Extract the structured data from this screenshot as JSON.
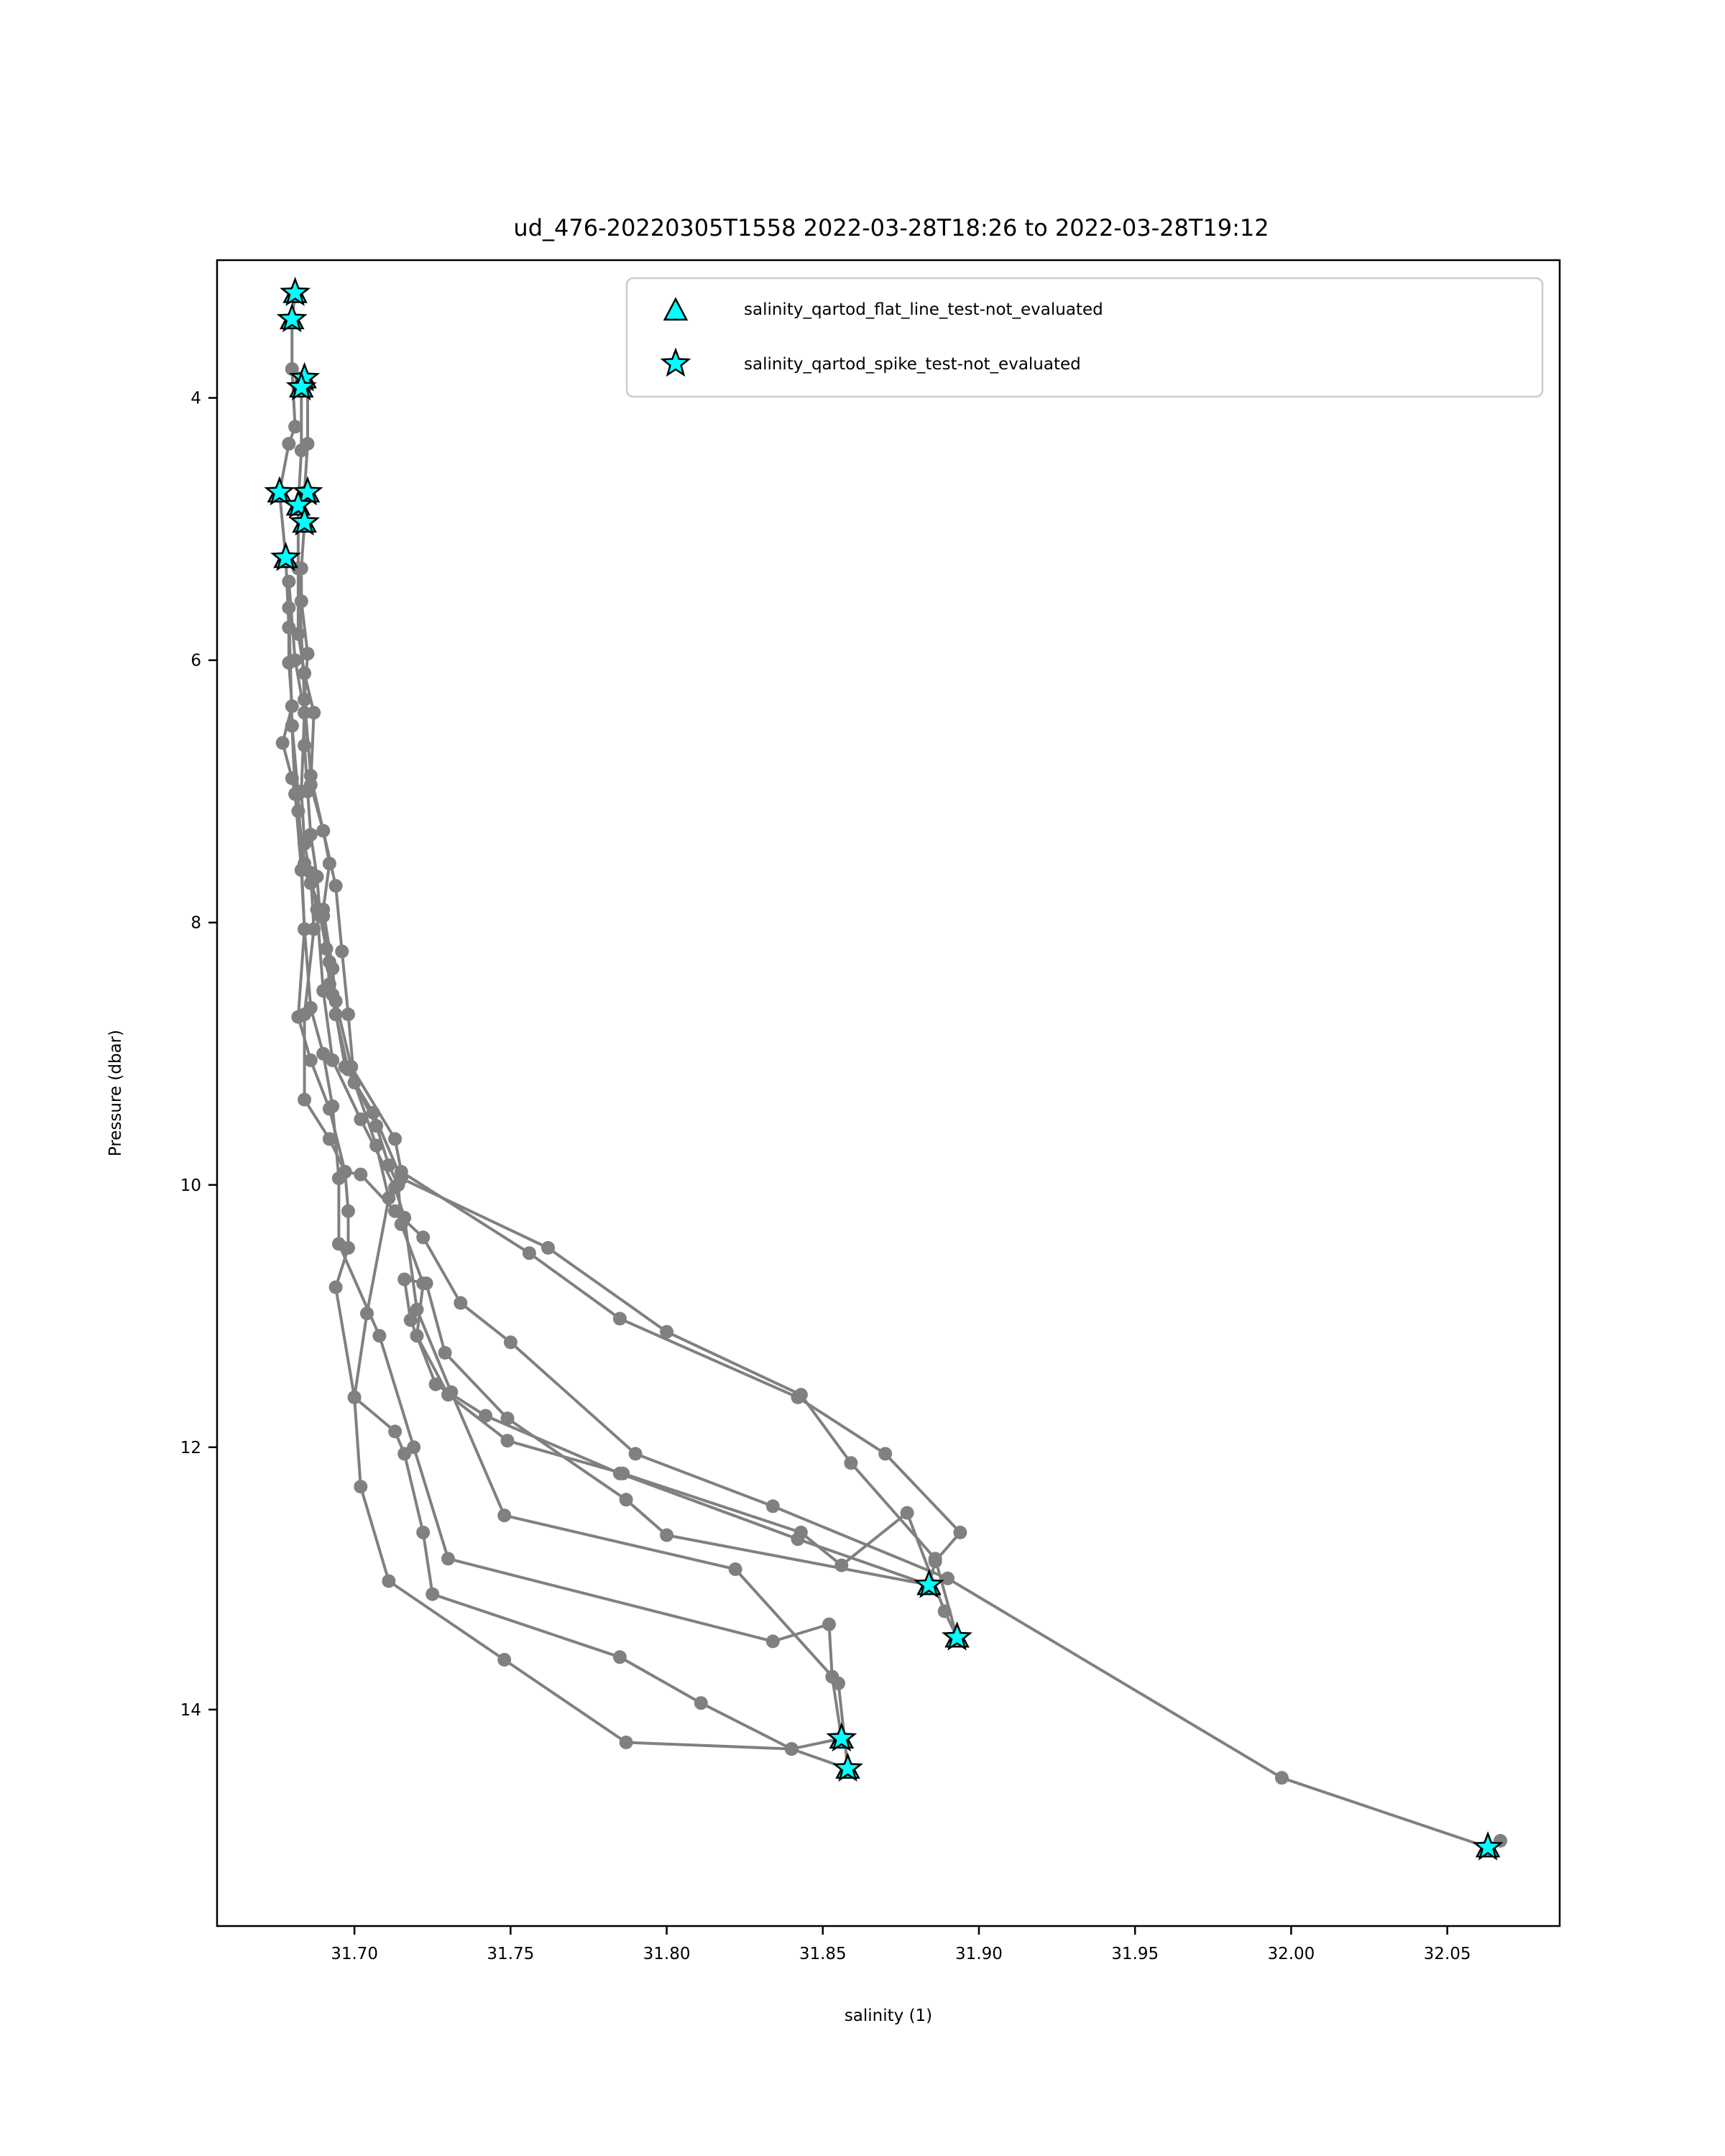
{
  "chart_data": {
    "type": "line",
    "title": "ud_476-20220305T1558 2022-03-28T18:26 to 2022-03-28T19:12",
    "xlabel": "salinity (1)",
    "ylabel": "Pressure (dbar)",
    "xlim": [
      31.656,
      32.086
    ],
    "ylim": [
      15.65,
      2.95
    ],
    "y_inverted": true,
    "xticks": [
      31.7,
      31.75,
      31.8,
      31.85,
      31.9,
      31.95,
      32.0,
      32.05
    ],
    "xtick_labels": [
      "31.70",
      "31.75",
      "31.80",
      "31.85",
      "31.90",
      "31.95",
      "32.00",
      "32.05"
    ],
    "yticks": [
      4,
      6,
      8,
      10,
      12,
      14
    ],
    "ytick_labels": [
      "4",
      "6",
      "8",
      "10",
      "12",
      "14"
    ],
    "grid": false,
    "legend_position": "top-right",
    "colors": {
      "profile_line": "#808080",
      "marker_fill": "#00ffff",
      "marker_edge": "#000000"
    },
    "series": [
      {
        "color": "#808080",
        "points": [
          [
            31.681,
            3.2
          ],
          [
            31.68,
            3.4
          ],
          [
            31.68,
            3.78
          ],
          [
            31.681,
            4.22
          ],
          [
            31.679,
            4.35
          ],
          [
            31.676,
            4.72
          ],
          [
            31.678,
            5.22
          ],
          [
            31.679,
            5.75
          ],
          [
            31.679,
            6.02
          ],
          [
            31.68,
            6.35
          ],
          [
            31.677,
            6.63
          ],
          [
            31.68,
            6.9
          ],
          [
            31.682,
            7.15
          ],
          [
            31.684,
            7.55
          ],
          [
            31.686,
            7.7
          ],
          [
            31.69,
            7.95
          ],
          [
            31.692,
            8.3
          ],
          [
            31.693,
            8.55
          ],
          [
            31.697,
            9.1
          ],
          [
            31.706,
            9.45
          ],
          [
            31.715,
            9.95
          ],
          [
            31.762,
            10.48
          ],
          [
            31.8,
            11.12
          ],
          [
            31.843,
            11.6
          ],
          [
            31.859,
            12.12
          ],
          [
            31.886,
            12.85
          ],
          [
            31.893,
            13.45
          ],
          [
            31.889,
            13.25
          ],
          [
            31.877,
            12.5
          ],
          [
            31.856,
            12.9
          ],
          [
            31.843,
            12.65
          ],
          [
            31.786,
            12.2
          ],
          [
            31.749,
            11.95
          ],
          [
            31.73,
            11.6
          ],
          [
            31.72,
            11.15
          ],
          [
            31.722,
            10.75
          ],
          [
            31.715,
            10.3
          ],
          [
            31.714,
            10.0
          ],
          [
            31.711,
            9.85
          ],
          [
            31.707,
            9.55
          ],
          [
            31.698,
            9.12
          ],
          [
            31.694,
            8.7
          ],
          [
            31.692,
            8.47
          ],
          [
            31.691,
            8.2
          ],
          [
            31.689,
            7.95
          ],
          [
            31.688,
            7.65
          ],
          [
            31.686,
            7.33
          ],
          [
            31.685,
            7.0
          ],
          [
            31.684,
            6.65
          ],
          [
            31.684,
            6.3
          ],
          [
            31.685,
            5.95
          ],
          [
            31.683,
            5.55
          ],
          [
            31.683,
            5.3
          ],
          [
            31.684,
            4.95
          ],
          [
            31.684,
            4.72
          ],
          [
            31.685,
            4.35
          ],
          [
            31.685,
            3.9
          ],
          [
            31.683,
            3.85
          ]
        ]
      },
      {
        "color": "#808080",
        "points": [
          [
            31.683,
            3.88
          ],
          [
            31.683,
            4.4
          ],
          [
            31.682,
            4.82
          ],
          [
            31.682,
            5.3
          ],
          [
            31.682,
            5.8
          ],
          [
            31.684,
            6.1
          ],
          [
            31.687,
            6.4
          ],
          [
            31.686,
            6.95
          ],
          [
            31.69,
            7.3
          ],
          [
            31.692,
            7.55
          ],
          [
            31.69,
            7.9
          ],
          [
            31.693,
            8.35
          ],
          [
            31.694,
            8.6
          ],
          [
            31.699,
            9.1
          ],
          [
            31.713,
            9.65
          ],
          [
            31.715,
            9.9
          ],
          [
            31.756,
            10.52
          ],
          [
            31.785,
            11.02
          ],
          [
            31.842,
            11.62
          ],
          [
            31.87,
            12.05
          ],
          [
            31.894,
            12.65
          ],
          [
            31.886,
            12.87
          ],
          [
            31.884,
            13.05
          ],
          [
            31.8,
            12.67
          ],
          [
            31.787,
            12.4
          ],
          [
            31.749,
            11.78
          ],
          [
            31.729,
            11.28
          ],
          [
            31.723,
            10.75
          ],
          [
            31.716,
            10.72
          ],
          [
            31.718,
            11.03
          ],
          [
            31.726,
            11.52
          ],
          [
            31.742,
            11.76
          ],
          [
            31.785,
            12.2
          ],
          [
            31.842,
            12.7
          ],
          [
            31.884,
            13.05
          ]
        ]
      },
      {
        "color": "#808080",
        "points": [
          [
            31.679,
            5.4
          ],
          [
            31.681,
            6.0
          ],
          [
            31.684,
            6.4
          ],
          [
            31.683,
            7.0
          ],
          [
            31.684,
            7.4
          ],
          [
            31.688,
            7.9
          ],
          [
            31.69,
            8.52
          ],
          [
            31.693,
            9.05
          ],
          [
            31.702,
            9.5
          ],
          [
            31.713,
            10.02
          ],
          [
            31.716,
            10.25
          ],
          [
            31.72,
            10.95
          ],
          [
            31.731,
            11.58
          ],
          [
            31.748,
            12.52
          ],
          [
            31.822,
            12.93
          ],
          [
            31.855,
            13.8
          ],
          [
            31.858,
            14.45
          ],
          [
            31.84,
            14.3
          ],
          [
            31.787,
            14.25
          ],
          [
            31.748,
            13.62
          ],
          [
            31.711,
            13.02
          ],
          [
            31.702,
            12.3
          ],
          [
            31.7,
            11.62
          ],
          [
            31.704,
            10.98
          ],
          [
            31.711,
            10.1
          ],
          [
            31.707,
            9.7
          ],
          [
            31.7,
            9.22
          ],
          [
            31.698,
            8.7
          ],
          [
            31.696,
            8.22
          ],
          [
            31.694,
            7.72
          ],
          [
            31.69,
            7.3
          ],
          [
            31.686,
            6.88
          ],
          [
            31.684,
            6.3
          ],
          [
            31.682,
            5.3
          ]
        ]
      },
      {
        "color": "#808080",
        "points": [
          [
            31.679,
            5.6
          ],
          [
            31.68,
            6.5
          ],
          [
            31.682,
            7.02
          ],
          [
            31.684,
            8.05
          ],
          [
            31.682,
            8.72
          ],
          [
            31.686,
            9.05
          ],
          [
            31.692,
            9.42
          ],
          [
            31.697,
            9.9
          ],
          [
            31.698,
            10.2
          ],
          [
            31.698,
            10.48
          ],
          [
            31.694,
            10.78
          ],
          [
            31.7,
            11.62
          ],
          [
            31.713,
            11.88
          ],
          [
            31.716,
            12.05
          ],
          [
            31.722,
            12.65
          ],
          [
            31.725,
            13.12
          ],
          [
            31.785,
            13.6
          ],
          [
            31.811,
            13.95
          ],
          [
            31.84,
            14.3
          ],
          [
            31.856,
            14.22
          ],
          [
            31.853,
            13.75
          ],
          [
            31.852,
            13.35
          ],
          [
            31.834,
            13.48
          ],
          [
            31.73,
            12.85
          ],
          [
            31.719,
            12.0
          ],
          [
            31.708,
            11.15
          ],
          [
            31.695,
            10.45
          ],
          [
            31.695,
            9.95
          ],
          [
            31.693,
            9.4
          ],
          [
            31.69,
            9.0
          ],
          [
            31.686,
            8.65
          ],
          [
            31.684,
            8.05
          ],
          [
            31.683,
            7.6
          ],
          [
            31.681,
            7.02
          ],
          [
            31.68,
            6.5
          ]
        ]
      },
      {
        "color": "#808080",
        "points": [
          [
            31.686,
            7.62
          ],
          [
            31.687,
            8.05
          ],
          [
            31.684,
            8.7
          ],
          [
            31.684,
            9.35
          ],
          [
            31.692,
            9.65
          ],
          [
            31.697,
            9.9
          ],
          [
            31.702,
            9.92
          ],
          [
            31.713,
            10.2
          ],
          [
            31.722,
            10.4
          ],
          [
            31.734,
            10.9
          ],
          [
            31.75,
            11.2
          ],
          [
            31.79,
            12.05
          ],
          [
            31.834,
            12.45
          ],
          [
            31.89,
            13.0
          ],
          [
            31.997,
            14.52
          ],
          [
            32.063,
            15.05
          ],
          [
            32.067,
            15.0
          ]
        ]
      }
    ],
    "flagged_points": [
      {
        "x": 31.681,
        "y": 3.2
      },
      {
        "x": 31.68,
        "y": 3.4
      },
      {
        "x": 31.684,
        "y": 3.85
      },
      {
        "x": 31.683,
        "y": 3.92
      },
      {
        "x": 31.676,
        "y": 4.72
      },
      {
        "x": 31.685,
        "y": 4.72
      },
      {
        "x": 31.682,
        "y": 4.82
      },
      {
        "x": 31.684,
        "y": 4.95
      },
      {
        "x": 31.678,
        "y": 5.22
      },
      {
        "x": 31.884,
        "y": 13.05
      },
      {
        "x": 31.893,
        "y": 13.45
      },
      {
        "x": 31.856,
        "y": 14.22
      },
      {
        "x": 31.858,
        "y": 14.45
      },
      {
        "x": 32.063,
        "y": 15.05
      }
    ],
    "legend": [
      {
        "label": "salinity_qartod_flat_line_test-not_evaluated",
        "marker": "triangle"
      },
      {
        "label": "salinity_qartod_spike_test-not_evaluated",
        "marker": "star"
      }
    ]
  }
}
